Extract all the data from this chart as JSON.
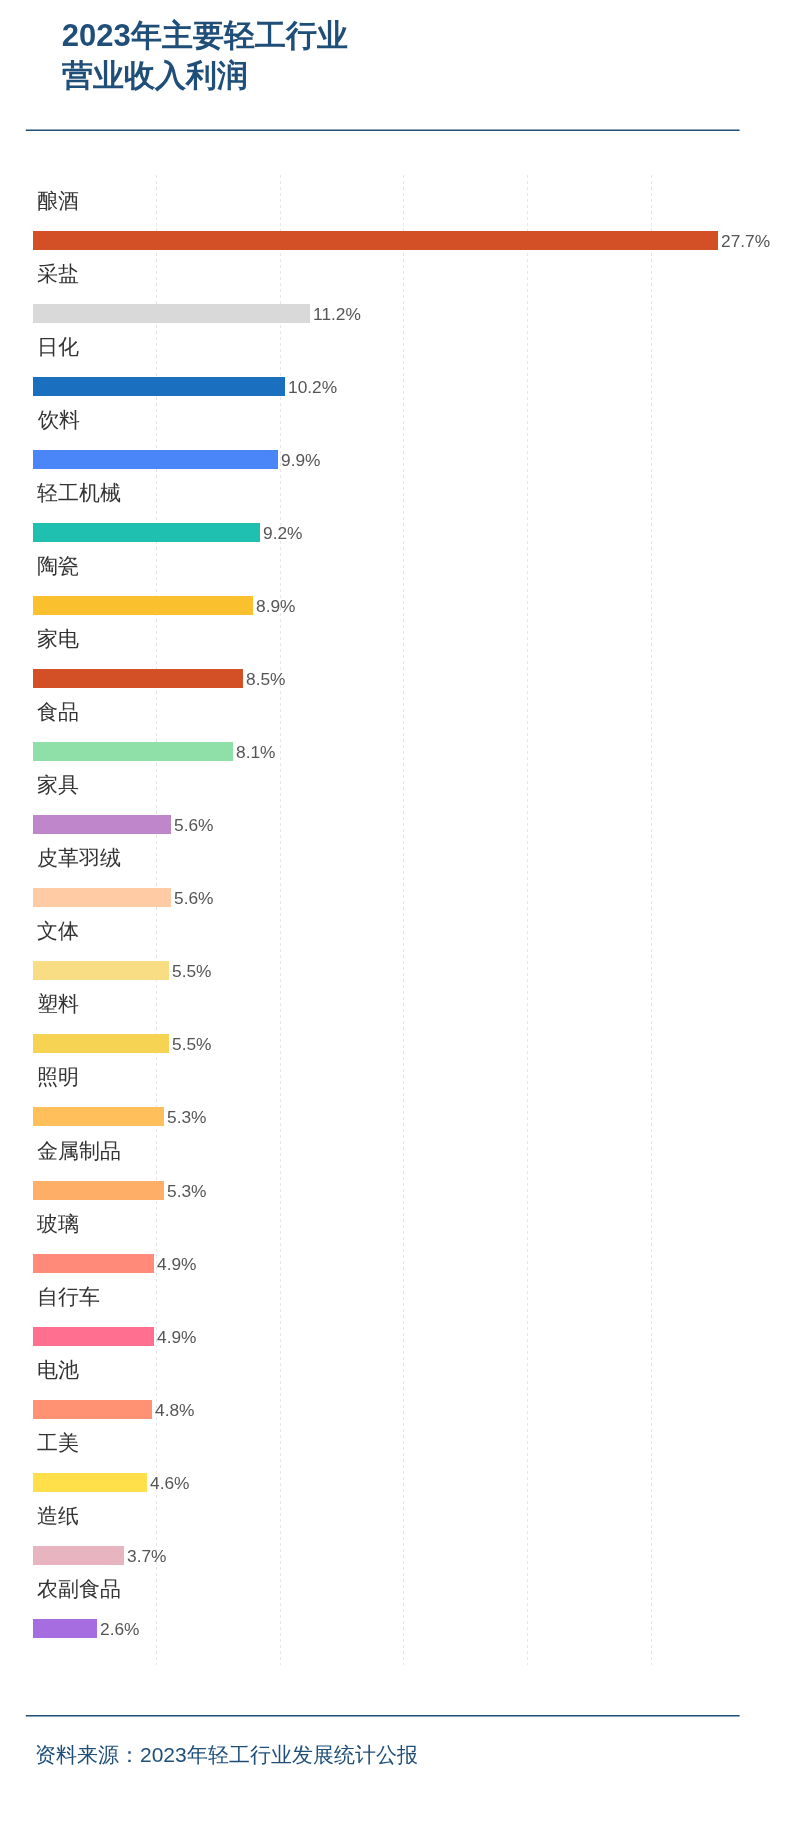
{
  "chart_data": {
    "type": "bar",
    "orientation": "horizontal",
    "title": "2023年主要轻工行业",
    "subtitle": "营业收入利润",
    "categories": [
      "酿酒",
      "采盐",
      "日化",
      "饮料",
      "轻工机械",
      "陶瓷",
      "家电",
      "食品",
      "家具",
      "皮革羽绒",
      "文体",
      "塑料",
      "照明",
      "金属制品",
      "玻璃",
      "自行车",
      "电池",
      "工美",
      "造纸",
      "农副食品"
    ],
    "values": [
      27.7,
      11.2,
      10.2,
      9.9,
      9.2,
      8.9,
      8.5,
      8.1,
      5.6,
      5.6,
      5.5,
      5.5,
      5.3,
      5.3,
      4.9,
      4.9,
      4.8,
      4.6,
      3.7,
      2.6
    ],
    "value_labels": [
      "27.7%",
      "11.2%",
      "10.2%",
      "9.9%",
      "9.2%",
      "8.9%",
      "8.5%",
      "8.1%",
      "5.6%",
      "5.6%",
      "5.5%",
      "5.5%",
      "5.3%",
      "5.3%",
      "4.9%",
      "4.9%",
      "4.8%",
      "4.6%",
      "3.7%",
      "2.6%"
    ],
    "colors": [
      "#d35027",
      "#d9d9d9",
      "#1a6fbf",
      "#4a86f7",
      "#1fc0b0",
      "#fbc02d",
      "#d35027",
      "#8ee0a8",
      "#bf86cc",
      "#ffcba4",
      "#f9dd84",
      "#f7d354",
      "#ffbf5a",
      "#ffae68",
      "#ff8a7a",
      "#ff6f8f",
      "#ff9272",
      "#ffe04a",
      "#e8b4c0",
      "#a56de0"
    ],
    "xticks": [
      {
        "value": 5,
        "label": null
      },
      {
        "value": 10,
        "label": null
      },
      {
        "value": 15,
        "label": null
      },
      {
        "value": 20,
        "label": null
      },
      {
        "value": 25,
        "label": null
      }
    ],
    "grid": "x",
    "tick_labels": false,
    "annotations": [
      "资料来源：2023年轻工行业发展统计公报"
    ]
  }
}
